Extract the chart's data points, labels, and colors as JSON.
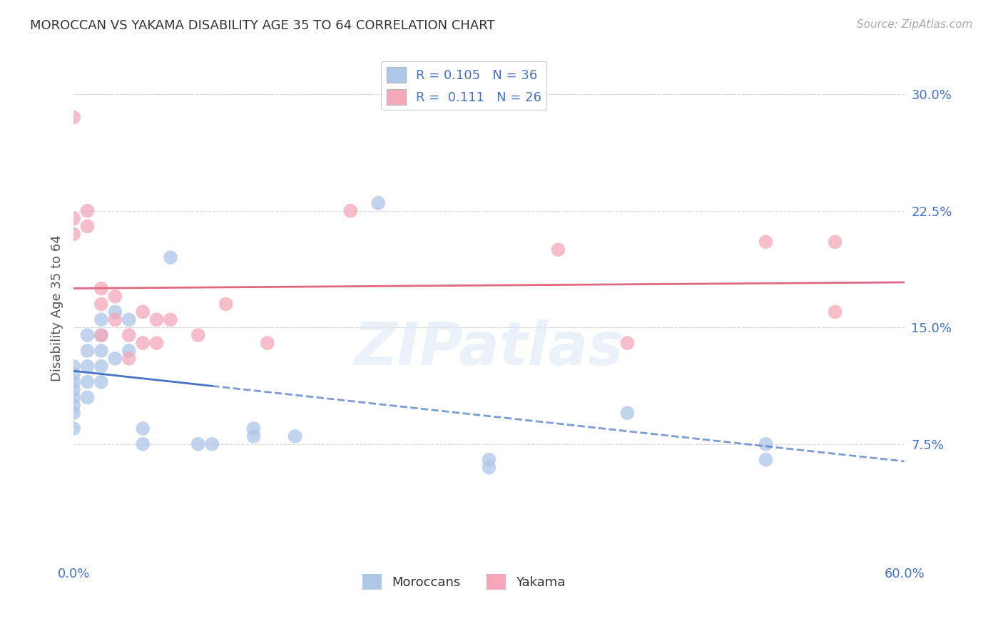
{
  "title": "MOROCCAN VS YAKAMA DISABILITY AGE 35 TO 64 CORRELATION CHART",
  "source": "Source: ZipAtlas.com",
  "ylabel": "Disability Age 35 to 64",
  "xlabel": "",
  "xlim": [
    0.0,
    0.6
  ],
  "ylim": [
    0.0,
    0.325
  ],
  "xticks": [
    0.0,
    0.1,
    0.2,
    0.3,
    0.4,
    0.5,
    0.6
  ],
  "xtick_labels": [
    "0.0%",
    "",
    "",
    "",
    "",
    "",
    "60.0%"
  ],
  "ytick_labels": [
    "7.5%",
    "15.0%",
    "22.5%",
    "30.0%"
  ],
  "yticks": [
    0.075,
    0.15,
    0.225,
    0.3
  ],
  "moroccan_R": 0.105,
  "moroccan_N": 36,
  "yakama_R": 0.111,
  "yakama_N": 26,
  "moroccan_color": "#aec6e8",
  "yakama_color": "#f4a7b9",
  "moroccan_line_color": "#4472c4",
  "yakama_line_color": "#e06880",
  "background_color": "#ffffff",
  "grid_color": "#cccccc",
  "watermark": "ZIPatlas",
  "moroccan_x": [
    0.0,
    0.0,
    0.0,
    0.0,
    0.0,
    0.0,
    0.0,
    0.0,
    0.01,
    0.01,
    0.01,
    0.01,
    0.01,
    0.02,
    0.02,
    0.02,
    0.02,
    0.02,
    0.03,
    0.03,
    0.04,
    0.04,
    0.05,
    0.05,
    0.07,
    0.09,
    0.1,
    0.13,
    0.13,
    0.16,
    0.22,
    0.3,
    0.3,
    0.4,
    0.5,
    0.5
  ],
  "moroccan_y": [
    0.125,
    0.12,
    0.115,
    0.11,
    0.105,
    0.1,
    0.095,
    0.085,
    0.145,
    0.135,
    0.125,
    0.115,
    0.105,
    0.155,
    0.145,
    0.135,
    0.125,
    0.115,
    0.16,
    0.13,
    0.155,
    0.135,
    0.085,
    0.075,
    0.195,
    0.075,
    0.075,
    0.085,
    0.08,
    0.08,
    0.23,
    0.065,
    0.06,
    0.095,
    0.075,
    0.065
  ],
  "yakama_x": [
    0.0,
    0.0,
    0.0,
    0.01,
    0.01,
    0.02,
    0.02,
    0.02,
    0.03,
    0.03,
    0.04,
    0.04,
    0.05,
    0.05,
    0.06,
    0.06,
    0.07,
    0.09,
    0.11,
    0.14,
    0.2,
    0.35,
    0.4,
    0.5,
    0.55,
    0.55
  ],
  "yakama_y": [
    0.285,
    0.22,
    0.21,
    0.225,
    0.215,
    0.175,
    0.165,
    0.145,
    0.17,
    0.155,
    0.145,
    0.13,
    0.16,
    0.14,
    0.155,
    0.14,
    0.155,
    0.145,
    0.165,
    0.14,
    0.225,
    0.2,
    0.14,
    0.205,
    0.205,
    0.16
  ]
}
